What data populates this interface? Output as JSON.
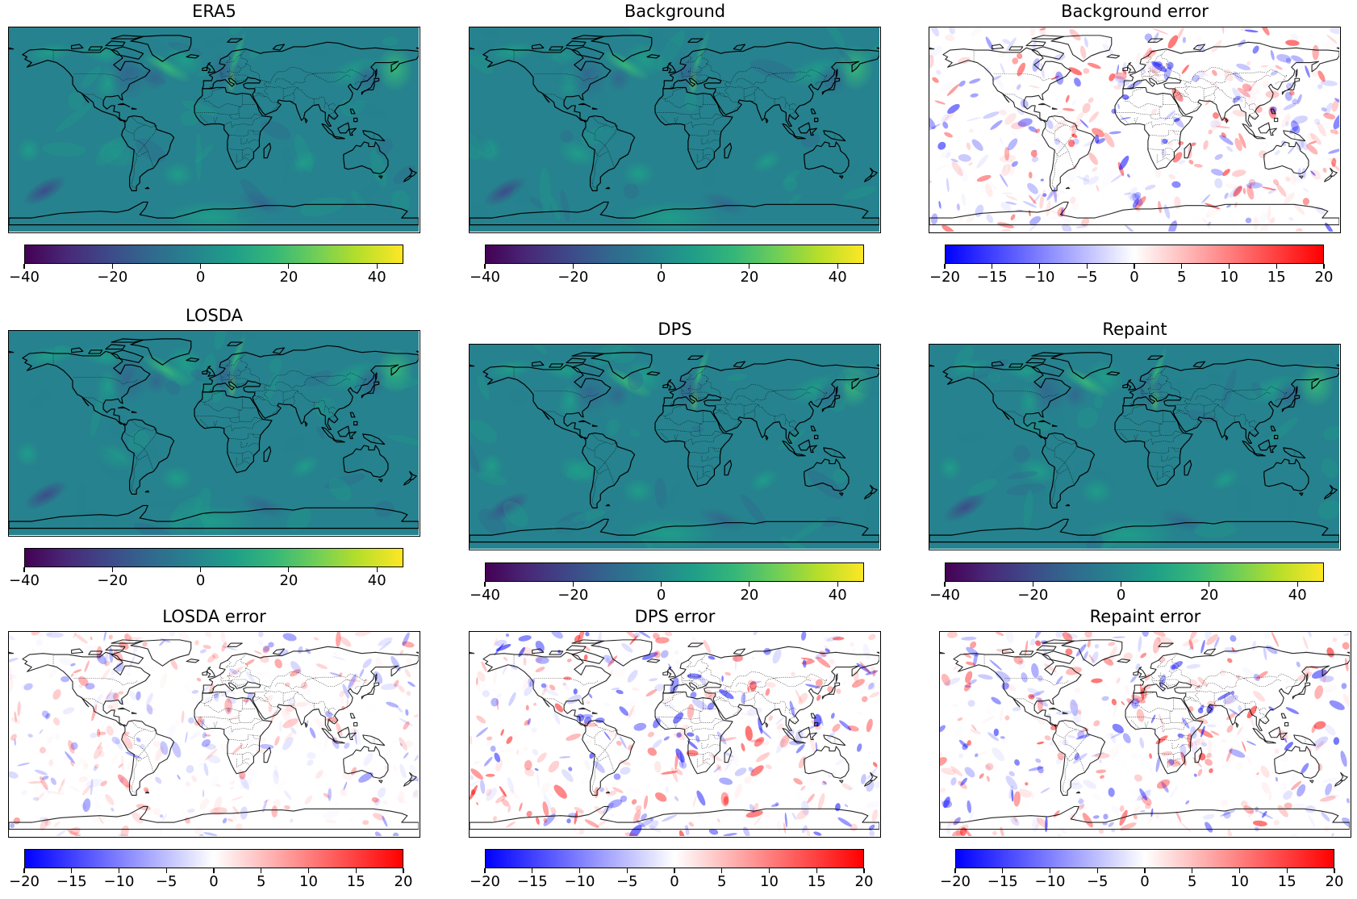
{
  "chart_data": [
    {
      "type": "heatmap",
      "title": "ERA5",
      "colormap": "viridis",
      "colorbar": {
        "range": [
          -40,
          46
        ],
        "ticks": [
          -40,
          -20,
          0,
          20,
          40
        ],
        "tick_labels": [
          "−40",
          "−20",
          "0",
          "20",
          "40"
        ]
      }
    },
    {
      "type": "heatmap",
      "title": "Background",
      "colormap": "viridis",
      "colorbar": {
        "range": [
          -40,
          46
        ],
        "ticks": [
          -40,
          -20,
          0,
          20,
          40
        ],
        "tick_labels": [
          "−40",
          "−20",
          "0",
          "20",
          "40"
        ]
      }
    },
    {
      "type": "heatmap",
      "title": "Background error",
      "colormap": "bwr",
      "colorbar": {
        "range": [
          -20,
          20
        ],
        "ticks": [
          -20,
          -15,
          -10,
          -5,
          0,
          5,
          10,
          15,
          20
        ],
        "tick_labels": [
          "−20",
          "−15",
          "−10",
          "−5",
          "0",
          "5",
          "10",
          "15",
          "20"
        ]
      }
    },
    {
      "type": "heatmap",
      "title": "LOSDA",
      "colormap": "viridis",
      "colorbar": {
        "range": [
          -40,
          46
        ],
        "ticks": [
          -40,
          -20,
          0,
          20,
          40
        ],
        "tick_labels": [
          "−40",
          "−20",
          "0",
          "20",
          "40"
        ]
      }
    },
    {
      "type": "heatmap",
      "title": "DPS",
      "colormap": "viridis",
      "colorbar": {
        "range": [
          -40,
          46
        ],
        "ticks": [
          -40,
          -20,
          0,
          20,
          40
        ],
        "tick_labels": [
          "−40",
          "−20",
          "0",
          "20",
          "40"
        ]
      }
    },
    {
      "type": "heatmap",
      "title": "Repaint",
      "colormap": "viridis",
      "colorbar": {
        "range": [
          -40,
          46
        ],
        "ticks": [
          -40,
          -20,
          0,
          20,
          40
        ],
        "tick_labels": [
          "−40",
          "−20",
          "0",
          "20",
          "40"
        ]
      }
    },
    {
      "type": "heatmap",
      "title": "LOSDA error",
      "colormap": "bwr",
      "colorbar": {
        "range": [
          -20,
          20
        ],
        "ticks": [
          -20,
          -15,
          -10,
          -5,
          0,
          5,
          10,
          15,
          20
        ],
        "tick_labels": [
          "−20",
          "−15",
          "−10",
          "−5",
          "0",
          "5",
          "10",
          "15",
          "20"
        ]
      }
    },
    {
      "type": "heatmap",
      "title": "DPS error",
      "colormap": "bwr",
      "colorbar": {
        "range": [
          -20,
          20
        ],
        "ticks": [
          -20,
          -15,
          -10,
          -5,
          0,
          5,
          10,
          15,
          20
        ],
        "tick_labels": [
          "−20",
          "−15",
          "−10",
          "−5",
          "0",
          "5",
          "10",
          "15",
          "20"
        ]
      }
    },
    {
      "type": "heatmap",
      "title": "Repaint error",
      "colormap": "bwr",
      "colorbar": {
        "range": [
          -20,
          20
        ],
        "ticks": [
          -20,
          -15,
          -10,
          -5,
          0,
          5,
          10,
          15,
          20
        ],
        "tick_labels": [
          "−20",
          "−15",
          "−10",
          "−5",
          "0",
          "5",
          "10",
          "15",
          "20"
        ]
      }
    }
  ],
  "colors": {
    "viridis": [
      "#440154",
      "#482878",
      "#3e4989",
      "#31688e",
      "#26828e",
      "#1f9e89",
      "#35b779",
      "#6ece58",
      "#b5de2b",
      "#fde725"
    ],
    "bwr": [
      "#0000ff",
      "#ffffff",
      "#ff0000"
    ],
    "coastline": "#000000"
  }
}
